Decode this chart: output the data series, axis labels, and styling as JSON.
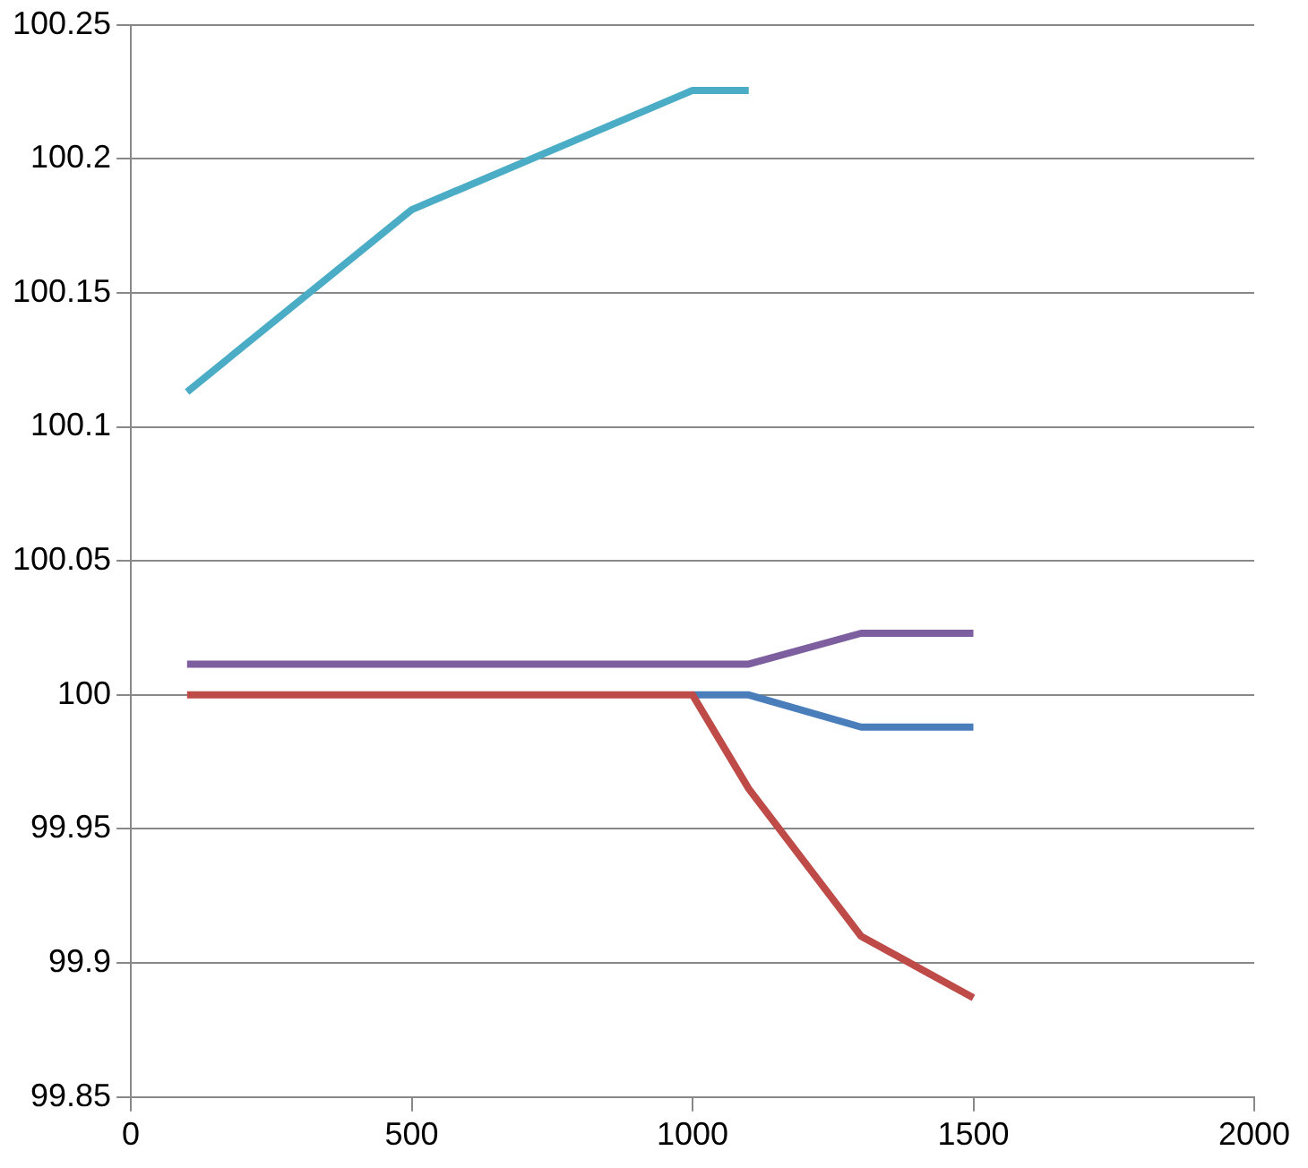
{
  "chart_data": {
    "type": "line",
    "x": [
      100,
      500,
      1000,
      1100,
      1300,
      1500
    ],
    "series": [
      {
        "color": "#be4b48",
        "values": [
          100,
          100,
          100,
          99.965,
          99.91,
          99.887
        ]
      },
      {
        "color": "#4a7ebb",
        "values": [
          null,
          null,
          100,
          100,
          99.988,
          99.988
        ]
      },
      {
        "color": "#7d5fa0",
        "values": [
          100.0115,
          100.0115,
          100.0115,
          100.0115,
          100.023,
          100.023
        ]
      },
      {
        "color": "#4bacc6",
        "values": [
          100.113,
          100.181,
          100.2255,
          100.2255,
          null,
          null
        ]
      }
    ],
    "xlim": [
      0,
      2000
    ],
    "xticks": [
      0,
      500,
      1000,
      1500,
      2000
    ],
    "ylim": [
      99.85,
      100.25
    ],
    "yticks": [
      99.85,
      99.9,
      99.95,
      100,
      100.05,
      100.1,
      100.15,
      100.2,
      100.25
    ],
    "grid": "y",
    "legend": false,
    "marker": "none",
    "line_style": "solid"
  }
}
